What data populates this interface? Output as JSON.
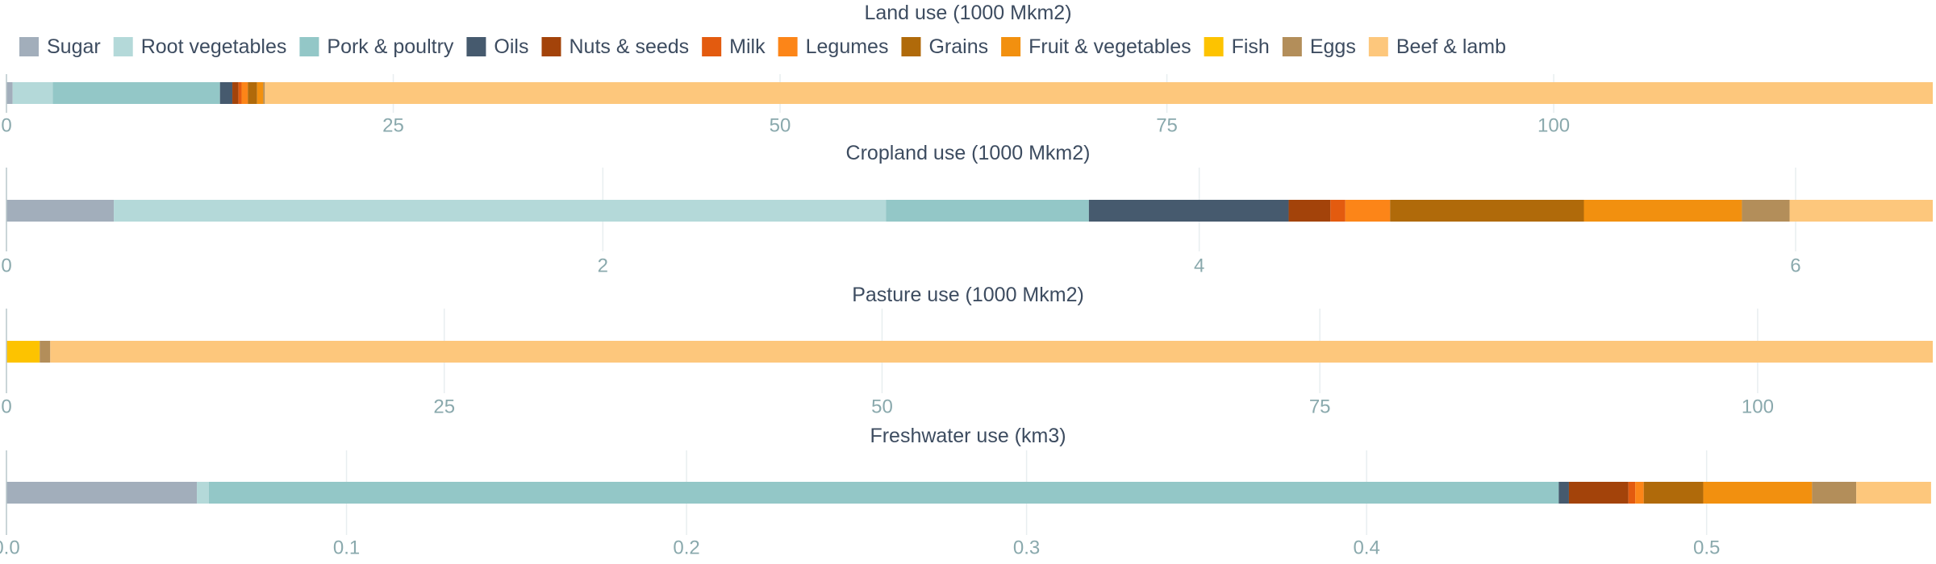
{
  "chart_data": {
    "type": "bar",
    "orientation": "horizontal-stacked",
    "categories": [
      "Sugar",
      "Root vegetables",
      "Pork & poultry",
      "Oils",
      "Nuts & seeds",
      "Milk",
      "Legumes",
      "Grains",
      "Fruit & vegetables",
      "Fish",
      "Eggs",
      "Beef & lamb"
    ],
    "colors": {
      "Sugar": "#a2aebb",
      "Root vegetables": "#b4d9d9",
      "Pork & poultry": "#93c7c7",
      "Oils": "#465a6e",
      "Nuts & seeds": "#a3430a",
      "Milk": "#e35b0f",
      "Legumes": "#fc8518",
      "Grains": "#b06a0a",
      "Fruit & vegetables": "#f2900f",
      "Fish": "#fdc300",
      "Eggs": "#b38e5a",
      "Beef & lamb": "#fdc77c"
    },
    "legend_position": "top-left",
    "grid": true,
    "panels": [
      {
        "title": "Land use (1000 Mkm2)",
        "xlim": [
          0,
          124.5
        ],
        "ticks": [
          0,
          25,
          50,
          75,
          100
        ],
        "tick_labels": [
          "0",
          "25",
          "50",
          "75",
          "100"
        ],
        "values": {
          "Sugar": 0.4,
          "Root vegetables": 2.6,
          "Pork & poultry": 10.8,
          "Oils": 0.8,
          "Nuts & seeds": 0.4,
          "Milk": 0.2,
          "Legumes": 0.4,
          "Grains": 0.6,
          "Fruit & vegetables": 0.4,
          "Fish": 0.0,
          "Eggs": 0.1,
          "Beef & lamb": 107.8
        }
      },
      {
        "title": "Cropland use (1000 Mkm2)",
        "xlim": [
          0,
          6.46
        ],
        "ticks": [
          0,
          2,
          4,
          6
        ],
        "tick_labels": [
          "0",
          "2",
          "4",
          "6"
        ],
        "values": {
          "Sugar": 0.36,
          "Root vegetables": 2.59,
          "Pork & poultry": 0.68,
          "Oils": 0.67,
          "Nuts & seeds": 0.14,
          "Milk": 0.05,
          "Legumes": 0.15,
          "Grains": 0.65,
          "Fruit & vegetables": 0.53,
          "Fish": 0.0,
          "Eggs": 0.16,
          "Beef & lamb": 0.48
        }
      },
      {
        "title": "Pasture use (1000 Mkm2)",
        "xlim": [
          0,
          110
        ],
        "ticks": [
          0,
          25,
          50,
          75,
          100
        ],
        "tick_labels": [
          "0",
          "25",
          "50",
          "75",
          "100"
        ],
        "values": {
          "Sugar": 0.0,
          "Root vegetables": 0.0,
          "Pork & poultry": 0.0,
          "Oils": 0.0,
          "Nuts & seeds": 0.0,
          "Milk": 0.0,
          "Legumes": 0.0,
          "Grains": 0.0,
          "Fruit & vegetables": 0.0,
          "Fish": 1.9,
          "Eggs": 0.6,
          "Beef & lamb": 107.5
        }
      },
      {
        "title": "Freshwater use (km3)",
        "xlim": [
          0,
          0.5665
        ],
        "ticks": [
          0.0,
          0.1,
          0.2,
          0.3,
          0.4,
          0.5
        ],
        "tick_labels": [
          "0.0",
          "0.1",
          "0.2",
          "0.3",
          "0.4",
          "0.5"
        ],
        "values": {
          "Sugar": 0.056,
          "Root vegetables": 0.0035,
          "Pork & poultry": 0.397,
          "Oils": 0.003,
          "Nuts & seeds": 0.0175,
          "Milk": 0.002,
          "Legumes": 0.0025,
          "Grains": 0.0175,
          "Fruit & vegetables": 0.032,
          "Fish": 0.0,
          "Eggs": 0.013,
          "Beef & lamb": 0.022
        }
      }
    ]
  }
}
